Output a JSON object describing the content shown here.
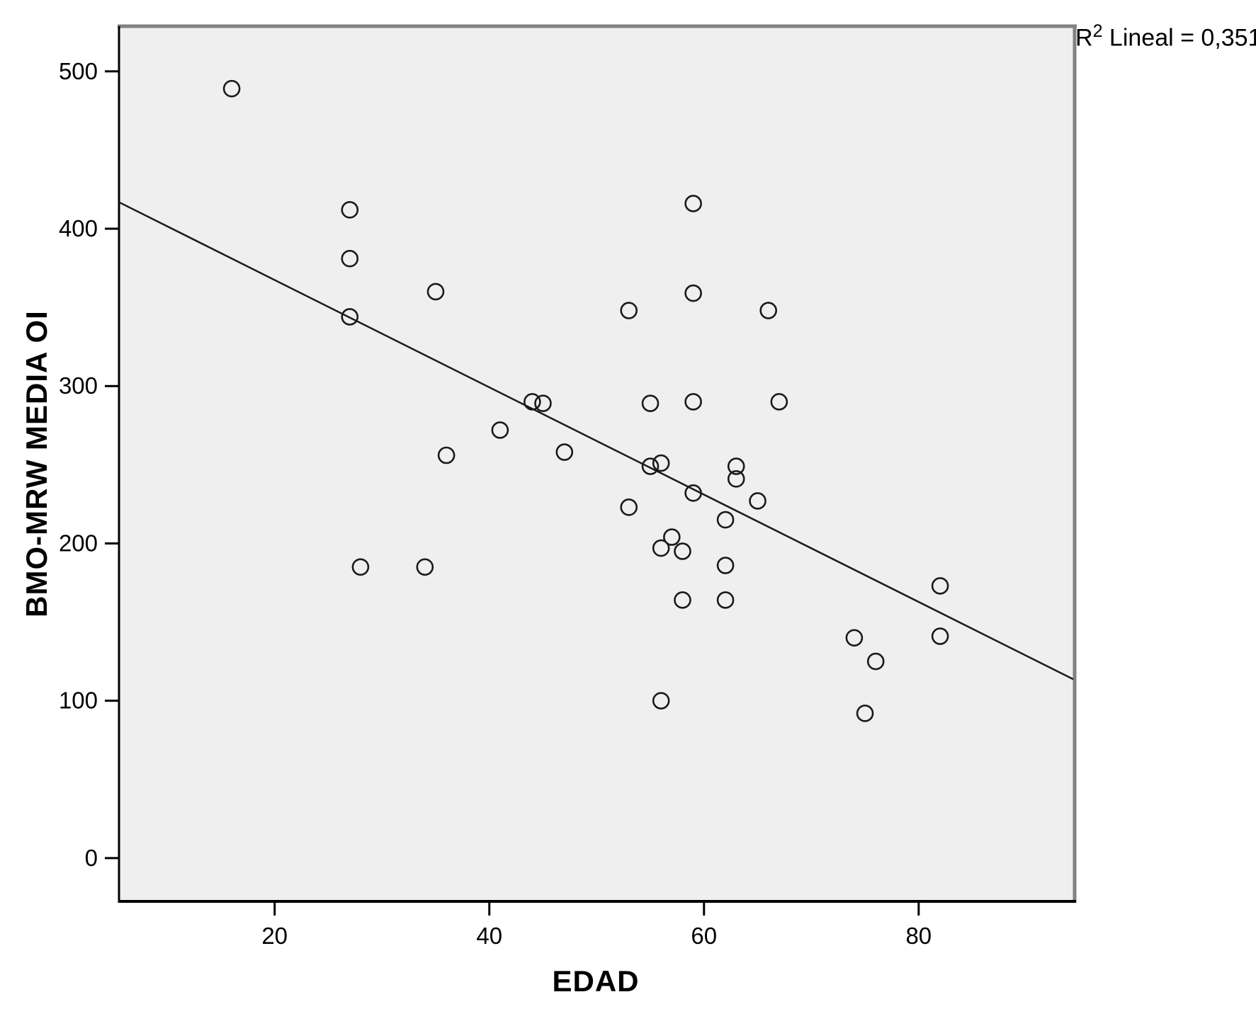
{
  "chart_data": {
    "type": "scatter",
    "title": "",
    "xlabel": "EDAD",
    "ylabel": "BMO-MRW MEDIA OI",
    "annotation": {
      "prefix": "R",
      "sup": "2",
      "rest": " Lineal = 0,351"
    },
    "x_ticks": [
      20,
      40,
      60,
      80
    ],
    "y_ticks": [
      0,
      100,
      200,
      300,
      400,
      500
    ],
    "xlim": [
      5.5,
      94.4
    ],
    "ylim": [
      -27.5,
      528.7
    ],
    "grid": false,
    "legend": "none",
    "marker": "open-circle",
    "points": [
      [
        16,
        489
      ],
      [
        27,
        412
      ],
      [
        27,
        381
      ],
      [
        27,
        344
      ],
      [
        28,
        185
      ],
      [
        34,
        185
      ],
      [
        35,
        360
      ],
      [
        36,
        256
      ],
      [
        41,
        272
      ],
      [
        44,
        290
      ],
      [
        45,
        289
      ],
      [
        47,
        258
      ],
      [
        53,
        348
      ],
      [
        53,
        223
      ],
      [
        55,
        289
      ],
      [
        55,
        249
      ],
      [
        56,
        251
      ],
      [
        56,
        197
      ],
      [
        56,
        100
      ],
      [
        57,
        204
      ],
      [
        58,
        195
      ],
      [
        58,
        164
      ],
      [
        59,
        416
      ],
      [
        59,
        359
      ],
      [
        59,
        290
      ],
      [
        59,
        232
      ],
      [
        62,
        215
      ],
      [
        62,
        186
      ],
      [
        62,
        164
      ],
      [
        63,
        249
      ],
      [
        63,
        241
      ],
      [
        65,
        227
      ],
      [
        66,
        348
      ],
      [
        67,
        290
      ],
      [
        74,
        140
      ],
      [
        75,
        92
      ],
      [
        76,
        125
      ],
      [
        82,
        173
      ],
      [
        82,
        141
      ]
    ],
    "regression_line": {
      "slope": -3.41,
      "intercept": 435.6,
      "x_start": 5.5,
      "x_end": 94.4
    },
    "colors": {
      "marker_stroke": "#1a1a1a",
      "line": "#1a1a1a",
      "plot_bg": "#efefef",
      "page_bg": "#ffffff",
      "text": "#000000",
      "frame_dark": "#000000",
      "frame_shadow": "#828282"
    }
  }
}
